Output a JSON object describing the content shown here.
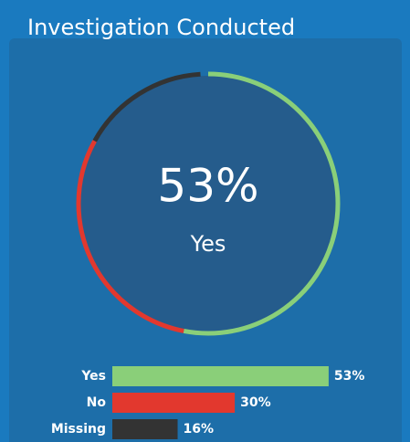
{
  "chart_data": {
    "type": "donut",
    "title": "Investigation Conducted",
    "categories": [
      "Yes",
      "No",
      "Missing"
    ],
    "values": [
      53,
      30,
      16
    ],
    "value_labels": [
      "53%",
      "30%",
      "16%"
    ],
    "colors": [
      "#8acf79",
      "#e2382e",
      "#333333"
    ]
  }
}
